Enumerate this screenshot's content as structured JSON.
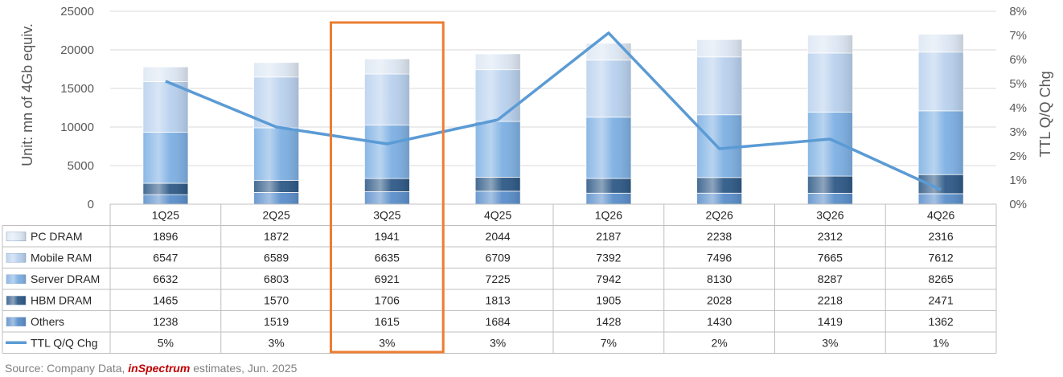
{
  "chart_data": {
    "type": "bar",
    "stacked": true,
    "categories": [
      "1Q25",
      "2Q25",
      "3Q25",
      "4Q25",
      "1Q26",
      "2Q26",
      "3Q26",
      "4Q26"
    ],
    "series": [
      {
        "name": "PC DRAM",
        "values": [
          1896,
          1872,
          1941,
          2044,
          2187,
          2238,
          2312,
          2316
        ],
        "color": "#dde7f3"
      },
      {
        "name": "Mobile RAM",
        "values": [
          6547,
          6589,
          6635,
          6709,
          7392,
          7496,
          7665,
          7612
        ],
        "color": "#b9d1ee"
      },
      {
        "name": "Server DRAM",
        "values": [
          6632,
          6803,
          6921,
          7225,
          7942,
          8130,
          8287,
          8265
        ],
        "color": "#7eb0e3"
      },
      {
        "name": "HBM DRAM",
        "values": [
          1465,
          1570,
          1706,
          1813,
          1905,
          2028,
          2218,
          2471
        ],
        "color": "#2f5a87"
      },
      {
        "name": "Others",
        "values": [
          1238,
          1519,
          1615,
          1684,
          1428,
          1430,
          1419,
          1362
        ],
        "color": "#5b8fcb"
      }
    ],
    "line_series": {
      "name": "TTL Q/Q Chg",
      "values": [
        5.1,
        3.2,
        2.5,
        3.5,
        7.1,
        2.3,
        2.7,
        0.6
      ],
      "labels": [
        "5%",
        "3%",
        "3%",
        "3%",
        "7%",
        "2%",
        "3%",
        "1%"
      ],
      "color": "#5b9bd5"
    },
    "ylabel": "Unit: mn of 4Gb equiv.",
    "y2label": "TTL Q/Q Chg",
    "ylim": [
      0,
      25000
    ],
    "yticks": [
      "0",
      "5000",
      "10000",
      "15000",
      "20000",
      "25000"
    ],
    "y2lim": [
      0,
      8
    ],
    "y2ticks": [
      "0%",
      "1%",
      "2%",
      "3%",
      "4%",
      "5%",
      "6%",
      "7%",
      "8%"
    ],
    "grid": true,
    "highlight_category": "3Q25",
    "highlight_color": "#ed7d31",
    "legend": "data-table"
  },
  "source": {
    "prefix": "Source: Company Data, ",
    "brand": "inSpectrum",
    "suffix": " estimates, Jun. 2025"
  }
}
